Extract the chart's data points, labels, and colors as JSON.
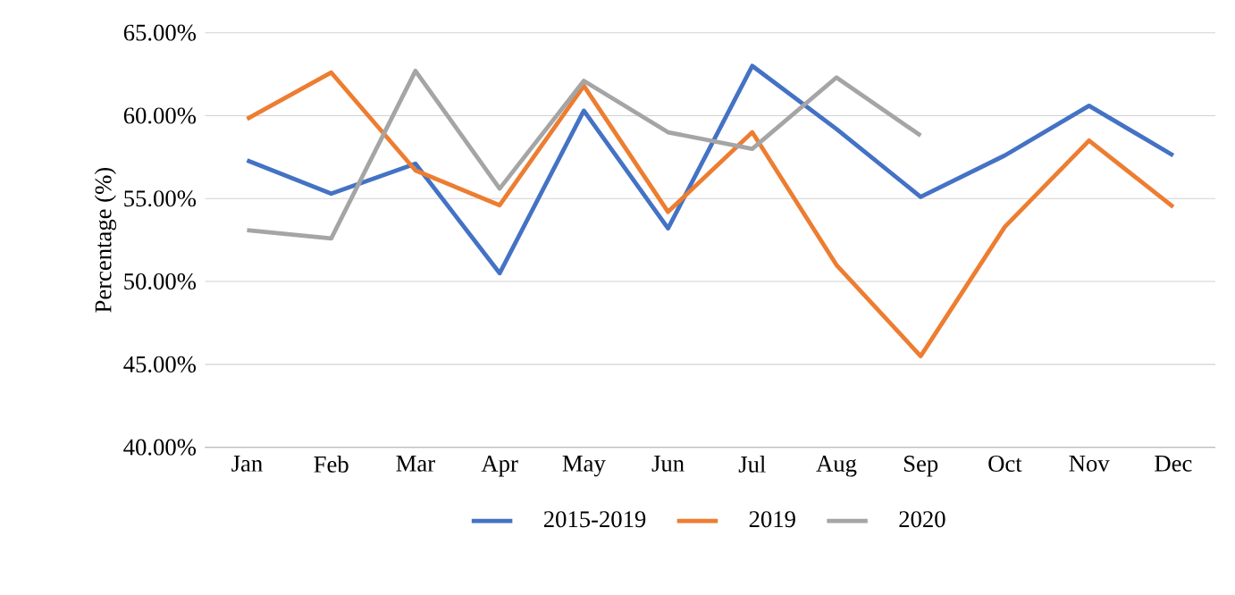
{
  "chart_data": {
    "type": "line",
    "ylabel": "Percentage (%)",
    "categories": [
      "Jan",
      "Feb",
      "Mar",
      "Apr",
      "May",
      "Jun",
      "Jul",
      "Aug",
      "Sep",
      "Oct",
      "Nov",
      "Dec"
    ],
    "series": [
      {
        "name": "2015-2019",
        "color": "#4472c4",
        "values": [
          57.3,
          55.3,
          57.1,
          50.5,
          60.3,
          53.2,
          63.0,
          59.2,
          55.1,
          57.6,
          60.6,
          57.6
        ]
      },
      {
        "name": "2019",
        "color": "#ed7d31",
        "values": [
          59.8,
          62.6,
          56.7,
          54.6,
          61.8,
          54.2,
          59.0,
          51.0,
          45.5,
          53.3,
          58.5,
          54.5
        ]
      },
      {
        "name": "2020",
        "color": "#a5a5a5",
        "values": [
          53.1,
          52.6,
          62.7,
          55.6,
          62.1,
          59.0,
          58.0,
          62.3,
          58.8,
          null,
          null,
          null
        ]
      }
    ],
    "ylim": [
      40,
      65
    ],
    "yticks": [
      {
        "value": 40,
        "label": "40.00%"
      },
      {
        "value": 45,
        "label": "45.00%"
      },
      {
        "value": 50,
        "label": "50.00%"
      },
      {
        "value": 55,
        "label": "55.00%"
      },
      {
        "value": 60,
        "label": "60.00%"
      },
      {
        "value": 65,
        "label": "65.00%"
      }
    ],
    "grid": "y",
    "legend": "bottom",
    "marker": "none",
    "line_style": "solid"
  }
}
